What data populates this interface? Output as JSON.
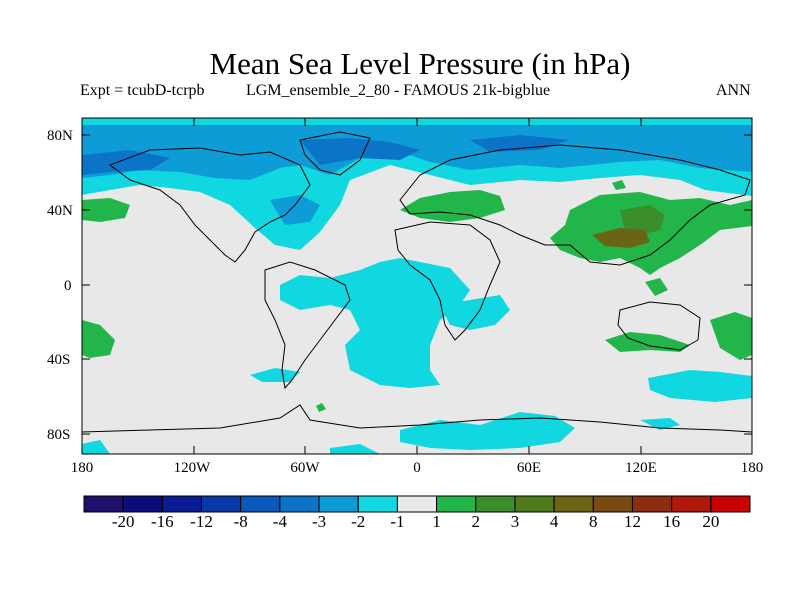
{
  "title": "Mean Sea Level Pressure (in hPa)",
  "subtitle_left": "Expt = tcubD-tcrpb",
  "subtitle_center": "LGM_ensemble_2_80 - FAMOUS 21k-bigblue",
  "subtitle_right": "ANN",
  "lat_labels": [
    "80N",
    "40N",
    "0",
    "40S",
    "80S"
  ],
  "lon_labels": [
    "180",
    "120W",
    "60W",
    "0",
    "60E",
    "120E",
    "180"
  ],
  "colorbar": {
    "colors": [
      "#1f0e6b",
      "#0c0c7a",
      "#0a1c96",
      "#0a3aa8",
      "#0a59bf",
      "#0b74c8",
      "#0e9cd6",
      "#10d7e0",
      "#e8e8e8",
      "#22b54a",
      "#3a8f2c",
      "#4e7a1c",
      "#6b6414",
      "#7a4a12",
      "#8c2c10",
      "#b1180c",
      "#cc0000"
    ],
    "labels": [
      "-20",
      "-16",
      "-12",
      "-8",
      "-4",
      "-3",
      "-2",
      "-1",
      "1",
      "2",
      "3",
      "4",
      "8",
      "12",
      "16",
      "20"
    ]
  },
  "map_colors": {
    "background": "#e8e8e8",
    "neg1": "#10d7e0",
    "neg2": "#0e9cd6",
    "neg3": "#0b74c8",
    "neg4": "#0a59bf",
    "pos1": "#22b54a",
    "pos2": "#3a8f2c",
    "pos4": "#6b6414"
  }
}
